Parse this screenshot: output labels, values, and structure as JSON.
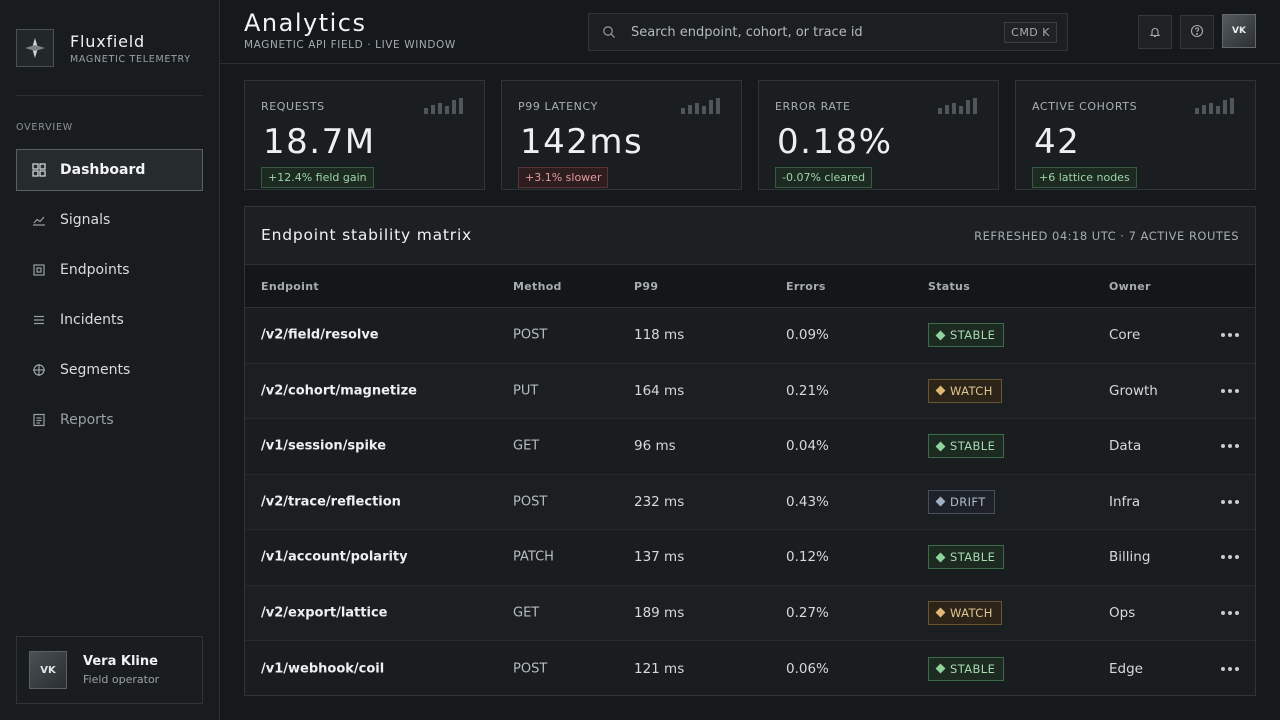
{
  "brand": {
    "name": "Fluxfield",
    "subtitle": "MAGNETIC TELEMETRY"
  },
  "sidebar": {
    "section_label": "OVERVIEW",
    "items": [
      {
        "label": "Dashboard",
        "icon": "grid-icon",
        "active": true
      },
      {
        "label": "Signals",
        "icon": "trend-icon"
      },
      {
        "label": "Endpoints",
        "icon": "target-square-icon"
      },
      {
        "label": "Incidents",
        "icon": "list-icon"
      },
      {
        "label": "Segments",
        "icon": "crosshair-icon"
      },
      {
        "label": "Reports",
        "icon": "document-icon"
      }
    ]
  },
  "user": {
    "initials": "VK",
    "name": "Vera Kline",
    "role": "Field operator"
  },
  "header": {
    "title": "Analytics",
    "subtitle": "MAGNETIC API FIELD · LIVE WINDOW",
    "search_placeholder": "Search endpoint, cohort, or trace id",
    "shortcut": "CMD K",
    "avatar_initials": "VK"
  },
  "kpis": [
    {
      "label": "REQUESTS",
      "value": "18.7M",
      "delta": "+12.4% field gain",
      "trend": "up",
      "spark": [
        0.4,
        0.55,
        0.7,
        0.5,
        0.85,
        1.0
      ]
    },
    {
      "label": "P99 LATENCY",
      "value": "142ms",
      "delta": "+3.1% slower",
      "trend": "down",
      "spark": [
        0.4,
        0.55,
        0.7,
        0.5,
        0.85,
        1.0
      ]
    },
    {
      "label": "ERROR RATE",
      "value": "0.18%",
      "delta": "-0.07% cleared",
      "trend": "up",
      "spark": [
        0.4,
        0.55,
        0.7,
        0.5,
        0.85,
        1.0
      ]
    },
    {
      "label": "ACTIVE COHORTS",
      "value": "42",
      "delta": "+6 lattice nodes",
      "trend": "up",
      "spark": [
        0.4,
        0.55,
        0.7,
        0.5,
        0.85,
        1.0
      ]
    }
  ],
  "table": {
    "title": "Endpoint stability matrix",
    "meta": "REFRESHED 04:18 UTC · 7 ACTIVE ROUTES",
    "columns": [
      "Endpoint",
      "Method",
      "P99",
      "Errors",
      "Status",
      "Owner"
    ],
    "rows": [
      {
        "endpoint": "/v2/field/resolve",
        "method": "POST",
        "p99": "118 ms",
        "errors": "0.09%",
        "status": "STABLE",
        "owner": "Core"
      },
      {
        "endpoint": "/v2/cohort/magnetize",
        "method": "PUT",
        "p99": "164 ms",
        "errors": "0.21%",
        "status": "WATCH",
        "owner": "Growth"
      },
      {
        "endpoint": "/v1/session/spike",
        "method": "GET",
        "p99": "96 ms",
        "errors": "0.04%",
        "status": "STABLE",
        "owner": "Data"
      },
      {
        "endpoint": "/v2/trace/reflection",
        "method": "POST",
        "p99": "232 ms",
        "errors": "0.43%",
        "status": "DRIFT",
        "owner": "Infra"
      },
      {
        "endpoint": "/v1/account/polarity",
        "method": "PATCH",
        "p99": "137 ms",
        "errors": "0.12%",
        "status": "STABLE",
        "owner": "Billing"
      },
      {
        "endpoint": "/v2/export/lattice",
        "method": "GET",
        "p99": "189 ms",
        "errors": "0.27%",
        "status": "WATCH",
        "owner": "Ops"
      },
      {
        "endpoint": "/v1/webhook/coil",
        "method": "POST",
        "p99": "121 ms",
        "errors": "0.06%",
        "status": "STABLE",
        "owner": "Edge"
      }
    ]
  },
  "colors": {
    "stable": "#8fd29c",
    "watch": "#e0b874",
    "drift": "#9fb1c3",
    "danger": "#e29b9f"
  }
}
